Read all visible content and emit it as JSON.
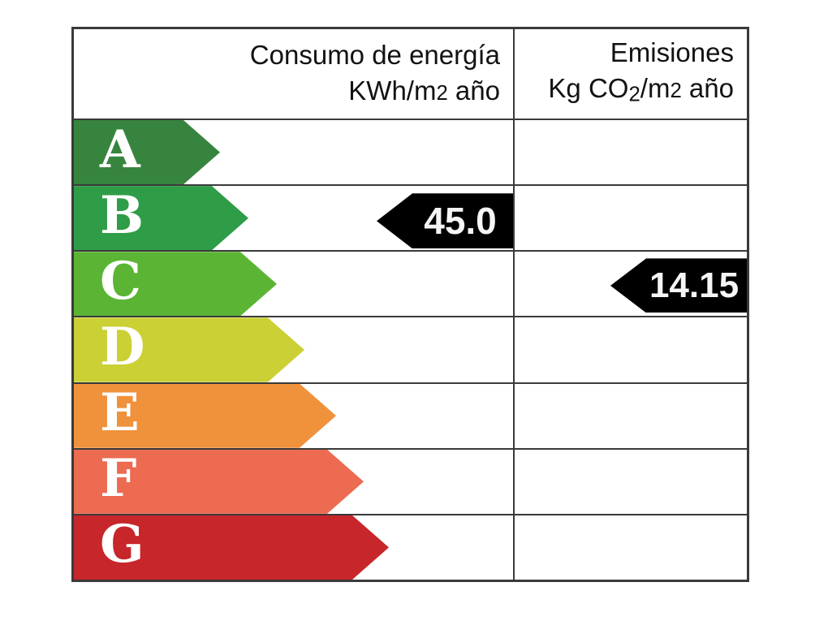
{
  "label": {
    "header": {
      "consumption": {
        "line1": "Consumo de energía",
        "line2_main": "KWh/m",
        "line2_exp": "2",
        "line2_tail": " año"
      },
      "emissions": {
        "line1": "Emisiones",
        "line2_a": "Kg CO",
        "line2_sub": "2",
        "line2_b": "/m",
        "line2_exp": "2",
        "line2_tail": " año"
      }
    },
    "ratings": [
      {
        "letter": "A",
        "color": "#37843F"
      },
      {
        "letter": "B",
        "color": "#2F9C47"
      },
      {
        "letter": "C",
        "color": "#5BB434"
      },
      {
        "letter": "D",
        "color": "#CBD034"
      },
      {
        "letter": "E",
        "color": "#F0913C"
      },
      {
        "letter": "F",
        "color": "#EC6B51"
      },
      {
        "letter": "G",
        "color": "#C7262B"
      }
    ],
    "markers": {
      "consumption": {
        "value": "45.0",
        "rating_row": "B",
        "color": "#000000",
        "text_color": "#F5F5F5"
      },
      "emissions": {
        "value": "14.15",
        "rating_row": "C",
        "color": "#000000",
        "text_color": "#F5F5F5"
      }
    },
    "border_color": "#3A3A3A"
  },
  "chart_data": {
    "type": "bar",
    "title": "",
    "categories": [
      "A",
      "B",
      "C",
      "D",
      "E",
      "F",
      "G"
    ],
    "bar_colors": [
      "#37843F",
      "#2F9C47",
      "#5BB434",
      "#CBD034",
      "#F0913C",
      "#EC6B51",
      "#C7262B"
    ],
    "series": [
      {
        "name": "Consumo de energía KWh/m2 año",
        "rating": "B",
        "value": 45.0
      },
      {
        "name": "Emisiones Kg CO2/m2 año",
        "rating": "C",
        "value": 14.15
      }
    ],
    "legend_position": "none",
    "grid": true
  }
}
